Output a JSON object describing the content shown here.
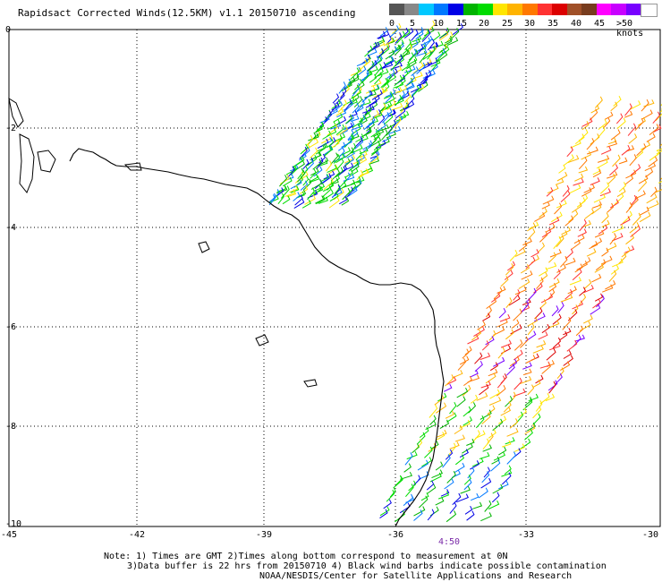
{
  "title": "Rapidsact Corrected Winds(12.5KM) v1.1 20150710 ascending",
  "legend": {
    "colors": [
      "#555555",
      "#888888",
      "#00c8ff",
      "#0078ff",
      "#0000e6",
      "#00b400",
      "#00dc00",
      "#ffe600",
      "#ffb400",
      "#ff7800",
      "#ff3232",
      "#dc0000",
      "#a05028",
      "#783c1e",
      "#ff00ff",
      "#c800ff",
      "#7800ff",
      "#ffffff"
    ],
    "labels": [
      "0",
      "5",
      "10",
      "15",
      "20",
      "25",
      "30",
      "35",
      "40",
      "45",
      ">50 knots"
    ]
  },
  "axes": {
    "x_ticks": [
      "-45",
      "-42",
      "-39",
      "-36",
      "-33",
      "-30"
    ],
    "y_ticks": [
      "0",
      "-2",
      "-4",
      "-6",
      "-8",
      "-10"
    ],
    "lon_range": [
      -45,
      -30
    ],
    "lat_range": [
      -10,
      0
    ]
  },
  "time_label": "4:50",
  "notes": {
    "line1": "Note: 1) Times are GMT 2)Times along bottom correspond to measurement at 0N",
    "line2": "3)Data buffer is 22 hrs from 20150710 4) Black wind barbs indicate possible contamination",
    "line3": "NOAA/NESDIS/Center for Satellite Applications and Research"
  }
}
